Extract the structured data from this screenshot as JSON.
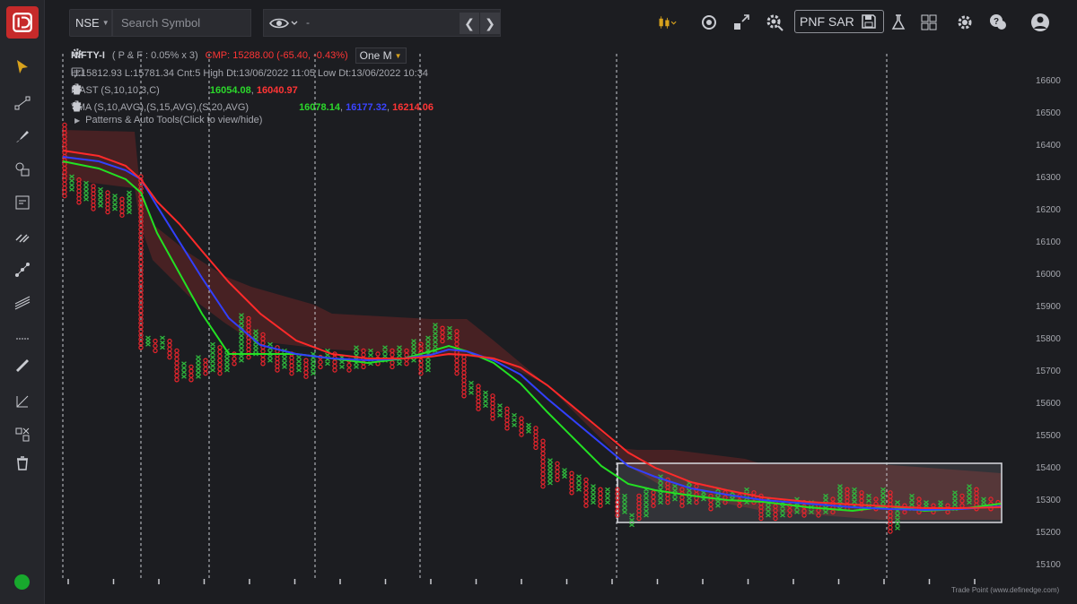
{
  "topbar": {
    "exchange": "NSE",
    "search_placeholder": "Search Symbol",
    "display_value": "-",
    "pnf_label": "PNF SAR"
  },
  "legend": {
    "symbol": "NIFTY-I",
    "params": "( P & F : 0.05% x 3)",
    "cmp": "CMP: 15288.00 (-65.40, -0.43%)",
    "timeframe": "One M",
    "stats": "H:15812.93 L:15781.34 Cnt:5 High Dt:13/06/2022 11:05 Low Dt:13/06/2022 10:34",
    "mast_label": "MAST (S,10,10,3,C)",
    "mast_v1": "16054.08",
    "mast_v2": "16040.97",
    "tma_label": "TMA (S,10,AVG),(S,15,AVG),(S,20,AVG)",
    "tma_v1": "16078.14",
    "tma_v2": "16177.32",
    "tma_v3": "16214.06",
    "patterns": "Patterns & Auto Tools(Click to view/hide)"
  },
  "yaxis": {
    "labels": [
      "16600",
      "16500",
      "16400",
      "16300",
      "16200",
      "16100",
      "16000",
      "15900",
      "15800",
      "15700",
      "15600",
      "15500",
      "15400",
      "15300",
      "15200",
      "15100"
    ]
  },
  "credit": "Trade Point (www.definedge.com)",
  "colors": {
    "rising_x": "#2fb83d",
    "falling_o": "#e8242c",
    "ma_green": "#23e023",
    "ma_blue": "#3240ff",
    "ma_red": "#ff2a2a",
    "cloud": "#6b2427",
    "status": "#18a82d"
  },
  "icons": [
    "logo-icon",
    "cursor-icon",
    "line-tool-icon",
    "brush-icon",
    "shapes-icon",
    "measure-icon",
    "fib-icon",
    "node-icon",
    "lines-icon",
    "text-icon",
    "ruler-icon",
    "channel-icon",
    "delete-tools-icon",
    "trash-icon",
    "candles-icon",
    "target-icon",
    "expand-icon",
    "settings-gear-icon",
    "save-icon",
    "lab-icon",
    "layout-grid-icon",
    "gear-icon",
    "help-icon",
    "user-icon"
  ]
}
